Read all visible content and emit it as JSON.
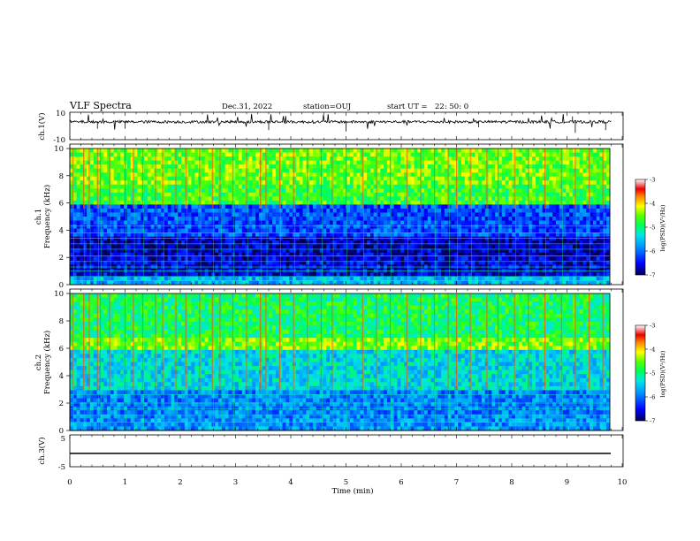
{
  "header": {
    "title": "VLF Spectra",
    "date": "Dec.31, 2022",
    "station": "station=OUJ",
    "start_label": "start UT =",
    "start_time": "22: 50: 0"
  },
  "colors": {
    "axes": "#000000",
    "waveform": "#000000",
    "colormap": [
      "#000066",
      "#0000ff",
      "#00c8ff",
      "#00ff66",
      "#ffff00",
      "#ff0000",
      "#ffffff"
    ]
  },
  "chart_data": [
    {
      "id": "ch1-waveform",
      "type": "line",
      "ylabel": "ch.1(V)",
      "ylim": [
        -10,
        10
      ],
      "yticks": [
        "10",
        "-10"
      ],
      "series": [
        {
          "baseline": 3,
          "noise_amplitude": 1,
          "spike_max": 7
        }
      ],
      "xlim": [
        0,
        10
      ]
    },
    {
      "id": "ch1-spectrogram",
      "type": "heatmap",
      "ylabel": "ch.1\nFrequency (kHz)",
      "ylim": [
        0,
        10
      ],
      "yticks": [
        "0",
        "2",
        "4",
        "6",
        "8",
        "10"
      ],
      "xlim": [
        0,
        10
      ],
      "colorbar": {
        "label": "log(PSD)(V²/Hz)",
        "range": [
          -7,
          -3
        ],
        "ticks": [
          "-3",
          "-4",
          "-5",
          "-6",
          "-7"
        ]
      },
      "bands_kHz_logPSD": [
        {
          "from": 0,
          "to": 0.5,
          "value": -5.6
        },
        {
          "from": 0.5,
          "to": 2.0,
          "value": -6.6
        },
        {
          "from": 2.0,
          "to": 3.5,
          "value": -6.7
        },
        {
          "from": 3.5,
          "to": 5.8,
          "value": -6.2
        },
        {
          "from": 5.8,
          "to": 7.5,
          "value": -4.7
        },
        {
          "from": 7.5,
          "to": 10,
          "value": -4.5
        }
      ]
    },
    {
      "id": "ch2-spectrogram",
      "type": "heatmap",
      "ylabel": "ch.2\nFrequency (kHz)",
      "ylim": [
        0,
        10
      ],
      "yticks": [
        "0",
        "2",
        "4",
        "6",
        "8",
        "10"
      ],
      "xlim": [
        0,
        10
      ],
      "colorbar": {
        "label": "log(PSD)(V²/Hz)",
        "range": [
          -7,
          -3
        ],
        "ticks": [
          "-3",
          "-4",
          "-5",
          "-6",
          "-7"
        ]
      },
      "bands_kHz_logPSD": [
        {
          "from": 0,
          "to": 1.0,
          "value": -5.8
        },
        {
          "from": 1.0,
          "to": 3.0,
          "value": -5.9
        },
        {
          "from": 3.0,
          "to": 6.0,
          "value": -5.4
        },
        {
          "from": 6.0,
          "to": 6.8,
          "value": -4.5
        },
        {
          "from": 6.8,
          "to": 10,
          "value": -4.9
        }
      ]
    },
    {
      "id": "ch3-waveform",
      "type": "line",
      "ylabel": "ch.3(V)",
      "ylim": [
        -5,
        5
      ],
      "yticks": [
        "5",
        "-5"
      ],
      "series": [
        {
          "constant": -0.8
        }
      ],
      "xlim": [
        0,
        10
      ]
    }
  ],
  "xaxis": {
    "label": "Time (min)",
    "ticks": [
      "0",
      "1",
      "2",
      "3",
      "4",
      "5",
      "6",
      "7",
      "8",
      "9",
      "10"
    ],
    "range": [
      0,
      10
    ]
  },
  "event_times_min": [
    0.05,
    0.25,
    0.35,
    0.5,
    0.55,
    0.72,
    1.0,
    1.15,
    1.32,
    1.55,
    1.68,
    1.92,
    2.1,
    2.35,
    2.58,
    2.72,
    2.95,
    3.2,
    3.45,
    3.55,
    3.8,
    4.05,
    4.3,
    4.55,
    4.75,
    5.0,
    5.3,
    5.55,
    5.8,
    6.1,
    6.35,
    6.6,
    6.85,
    7.0,
    7.25,
    7.55,
    7.75,
    8.05,
    8.3,
    8.6,
    8.9,
    9.15,
    9.4,
    9.65
  ]
}
